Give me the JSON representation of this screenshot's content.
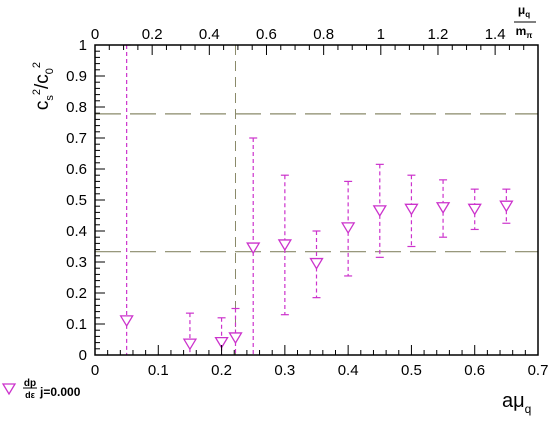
{
  "chart_data": {
    "type": "scatter",
    "xlabel": "aμ_q",
    "ylabel": "c_s^2/c_0^2",
    "top_axis_label": "μ_q/m_π",
    "xlim": [
      0,
      0.7
    ],
    "ylim": [
      0,
      1
    ],
    "x_ticks": [
      0,
      0.1,
      0.2,
      0.3,
      0.4,
      0.5,
      0.6,
      0.7
    ],
    "x_tick_labels": [
      "0",
      "0.1",
      "0.2",
      "0.3",
      "0.4",
      "0.5",
      "0.6",
      "0.7"
    ],
    "y_ticks": [
      0,
      0.1,
      0.2,
      0.3,
      0.4,
      0.5,
      0.6,
      0.7,
      0.8,
      0.9,
      1
    ],
    "y_tick_labels": [
      "0",
      "0.1",
      "0.2",
      "0.3",
      "0.4",
      "0.5",
      "0.6",
      "0.7",
      "0.8",
      "0.9",
      "1"
    ],
    "top_axis": {
      "xlim": [
        0,
        1.55
      ],
      "ticks": [
        0,
        0.2,
        0.4,
        0.6,
        0.8,
        1,
        1.2,
        1.4
      ],
      "tick_labels": [
        "0",
        "0.2",
        "0.4",
        "0.6",
        "0.8",
        "1",
        "1.2",
        "1.4"
      ]
    },
    "reference_lines": [
      0.7778,
      0.3333
    ],
    "vertical_line_x": 0.222,
    "legend": {
      "label": "j=0.000",
      "symbol_label": "dp/dε",
      "placement": "bottom-left"
    },
    "series": [
      {
        "name": "j=0.000",
        "color": "#cc33cc",
        "marker": "triangle-down",
        "x": [
          0.05,
          0.15,
          0.2,
          0.222,
          0.25,
          0.3,
          0.35,
          0.4,
          0.45,
          0.5,
          0.55,
          0.6,
          0.65
        ],
        "y": [
          0.11,
          0.035,
          0.04,
          0.055,
          0.345,
          0.355,
          0.295,
          0.41,
          0.465,
          0.47,
          0.475,
          0.47,
          0.48
        ],
        "y_low": [
          0.0,
          0.0,
          0.0,
          0.0,
          0.0,
          0.13,
          0.185,
          0.255,
          0.315,
          0.35,
          0.38,
          0.405,
          0.425
        ],
        "y_high": [
          1.0,
          0.135,
          0.12,
          0.15,
          0.7,
          0.58,
          0.4,
          0.56,
          0.615,
          0.58,
          0.565,
          0.535,
          0.535
        ]
      }
    ]
  }
}
